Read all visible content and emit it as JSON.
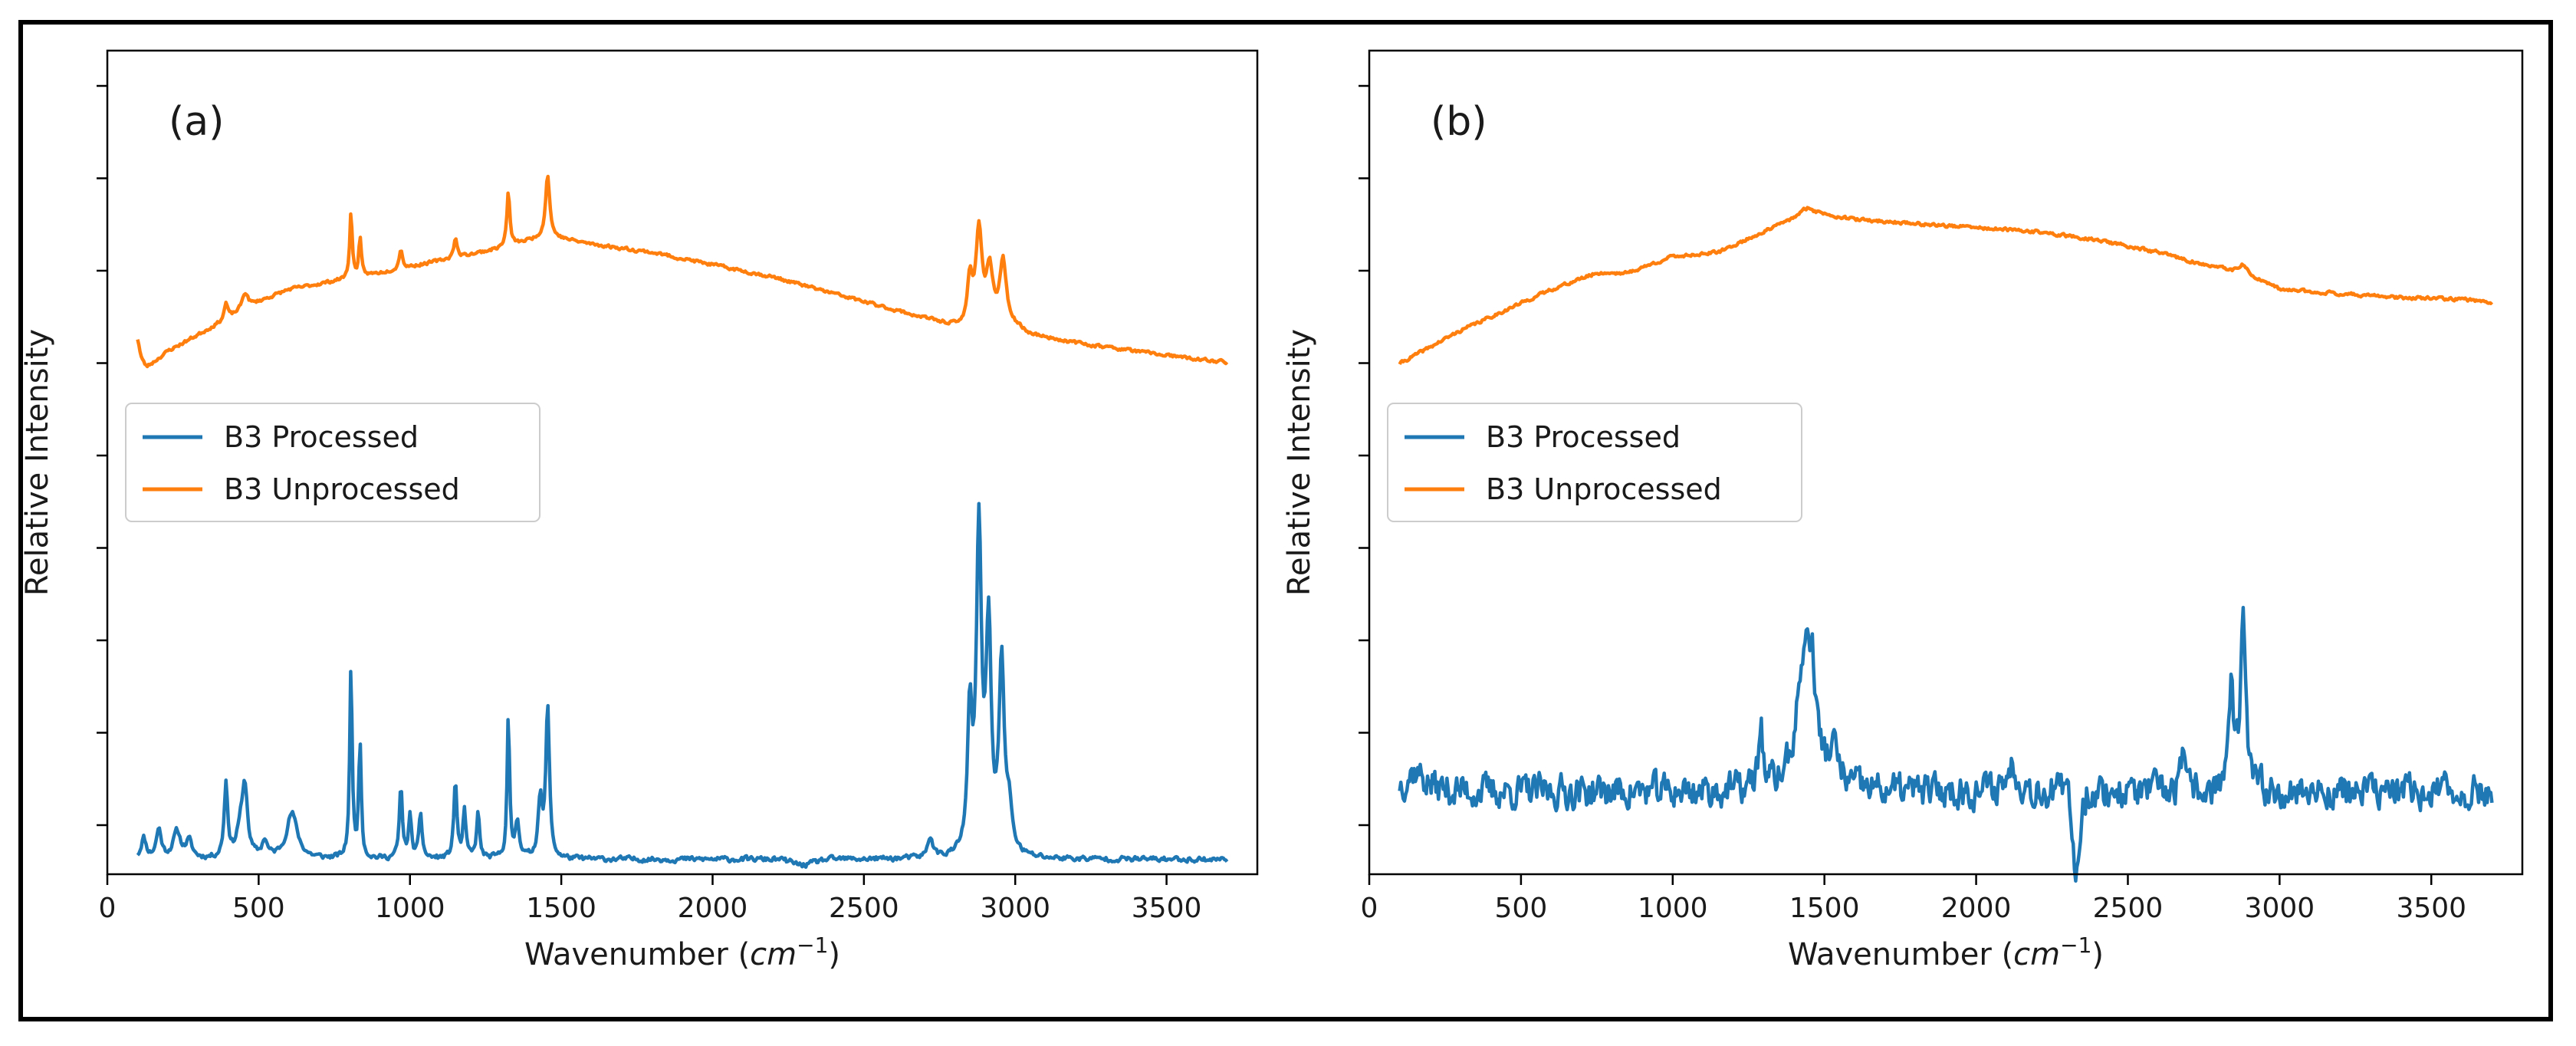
{
  "chart_data": [
    {
      "type": "line",
      "panel_label": "(a)",
      "xlabel": "Wavenumber ($cm^{-1}$)",
      "xlabel_main": "Wavenumber (",
      "xlabel_unit": "cm",
      "xlabel_exp": "−1",
      "xlabel_close": ")",
      "ylabel": "Relative Intensity",
      "xlim": [
        0,
        3800
      ],
      "ylim": [
        0,
        10
      ],
      "xticks": [
        0,
        500,
        1000,
        1500,
        2000,
        2500,
        3000,
        3500
      ],
      "yticks_count": 9,
      "grid": false,
      "legend_position": "center-left",
      "legend": [
        "B3 Processed",
        "B3 Unprocessed"
      ],
      "colors": {
        "processed": "#1f77b4",
        "unprocessed": "#ff7f0e"
      },
      "series": [
        {
          "name": "B3 Processed",
          "baseline": 0.18,
          "noise": 0.05,
          "seed": 11,
          "peaks": [
            [
              120,
              0.25,
              10
            ],
            [
              170,
              0.35,
              10
            ],
            [
              230,
              0.32,
              15
            ],
            [
              270,
              0.2,
              12
            ],
            [
              392,
              0.9,
              7
            ],
            [
              440,
              0.35,
              15
            ],
            [
              455,
              0.75,
              10
            ],
            [
              520,
              0.2,
              10
            ],
            [
              610,
              0.55,
              22
            ],
            [
              805,
              2.3,
              5
            ],
            [
              835,
              1.4,
              5
            ],
            [
              970,
              0.85,
              6
            ],
            [
              1000,
              0.5,
              6
            ],
            [
              1035,
              0.55,
              6
            ],
            [
              1150,
              0.95,
              6
            ],
            [
              1180,
              0.55,
              6
            ],
            [
              1225,
              0.55,
              6
            ],
            [
              1325,
              1.7,
              5
            ],
            [
              1355,
              0.45,
              8
            ],
            [
              1430,
              0.7,
              8
            ],
            [
              1455,
              1.85,
              7
            ],
            [
              2720,
              0.25,
              10
            ],
            [
              2850,
              1.65,
              9
            ],
            [
              2880,
              3.9,
              10
            ],
            [
              2912,
              2.7,
              10
            ],
            [
              2955,
              2.3,
              10
            ],
            [
              2980,
              0.5,
              12
            ]
          ],
          "dip": [
            2300,
            -0.07,
            50
          ]
        },
        {
          "name": "B3 Unprocessed",
          "baseline_points": [
            [
              100,
              6.25
            ],
            [
              130,
              6.15
            ],
            [
              200,
              6.35
            ],
            [
              300,
              6.55
            ],
            [
              400,
              6.75
            ],
            [
              500,
              6.95
            ],
            [
              600,
              7.1
            ],
            [
              750,
              7.2
            ],
            [
              900,
              7.3
            ],
            [
              1100,
              7.45
            ],
            [
              1300,
              7.6
            ],
            [
              1450,
              7.75
            ],
            [
              1600,
              7.65
            ],
            [
              1800,
              7.55
            ],
            [
              2000,
              7.4
            ],
            [
              2200,
              7.25
            ],
            [
              2400,
              7.05
            ],
            [
              2600,
              6.85
            ],
            [
              2750,
              6.7
            ],
            [
              2840,
              6.6
            ],
            [
              2950,
              6.75
            ],
            [
              3050,
              6.55
            ],
            [
              3200,
              6.45
            ],
            [
              3400,
              6.35
            ],
            [
              3600,
              6.25
            ],
            [
              3700,
              6.22
            ]
          ],
          "noise": 0.03,
          "seed": 23,
          "peaks": [
            [
              100,
              0.25,
              8
            ],
            [
              392,
              0.2,
              7
            ],
            [
              455,
              0.2,
              12
            ],
            [
              805,
              0.8,
              5
            ],
            [
              835,
              0.45,
              5
            ],
            [
              970,
              0.25,
              6
            ],
            [
              1150,
              0.25,
              6
            ],
            [
              1325,
              0.65,
              6
            ],
            [
              1455,
              0.75,
              8
            ],
            [
              2850,
              0.6,
              10
            ],
            [
              2880,
              1.15,
              12
            ],
            [
              2915,
              0.6,
              12
            ],
            [
              2960,
              0.7,
              12
            ]
          ]
        }
      ]
    },
    {
      "type": "line",
      "panel_label": "(b)",
      "xlabel": "Wavenumber ($cm^{-1}$)",
      "xlabel_main": "Wavenumber (",
      "xlabel_unit": "cm",
      "xlabel_exp": "−1",
      "xlabel_close": ")",
      "ylabel": "Relative Intensity",
      "xlim": [
        0,
        3800
      ],
      "ylim": [
        0,
        10
      ],
      "xticks": [
        0,
        500,
        1000,
        1500,
        2000,
        2500,
        3000,
        3500
      ],
      "yticks_count": 9,
      "grid": false,
      "legend_position": "center-left",
      "legend": [
        "B3 Processed",
        "B3 Unprocessed"
      ],
      "colors": {
        "processed": "#1f77b4",
        "unprocessed": "#ff7f0e"
      },
      "series": [
        {
          "name": "B3 Processed",
          "baseline": 1.0,
          "noise": 0.32,
          "seed": 37,
          "peaks": [
            [
              150,
              0.25,
              40
            ],
            [
              1290,
              0.8,
              8
            ],
            [
              1435,
              1.6,
              30
            ],
            [
              1460,
              0.8,
              15
            ],
            [
              1530,
              0.4,
              20
            ],
            [
              2120,
              0.3,
              25
            ],
            [
              2680,
              0.4,
              8
            ],
            [
              2840,
              1.2,
              10
            ],
            [
              2880,
              2.0,
              10
            ]
          ],
          "dip": [
            2330,
            -0.9,
            18
          ]
        },
        {
          "name": "B3 Unprocessed",
          "baseline_points": [
            [
              100,
              6.2
            ],
            [
              200,
              6.4
            ],
            [
              300,
              6.6
            ],
            [
              450,
              6.85
            ],
            [
              600,
              7.1
            ],
            [
              750,
              7.3
            ],
            [
              850,
              7.3
            ],
            [
              1000,
              7.5
            ],
            [
              1150,
              7.55
            ],
            [
              1300,
              7.8
            ],
            [
              1450,
              8.05
            ],
            [
              1600,
              7.95
            ],
            [
              1800,
              7.9
            ],
            [
              2000,
              7.85
            ],
            [
              2200,
              7.8
            ],
            [
              2400,
              7.7
            ],
            [
              2600,
              7.55
            ],
            [
              2750,
              7.4
            ],
            [
              2880,
              7.3
            ],
            [
              3000,
              7.1
            ],
            [
              3200,
              7.05
            ],
            [
              3400,
              7.0
            ],
            [
              3600,
              6.98
            ],
            [
              3700,
              6.95
            ]
          ],
          "noise": 0.03,
          "seed": 41,
          "peaks": [
            [
              2880,
              0.1,
              15
            ],
            [
              1440,
              0.05,
              20
            ]
          ]
        }
      ]
    }
  ]
}
